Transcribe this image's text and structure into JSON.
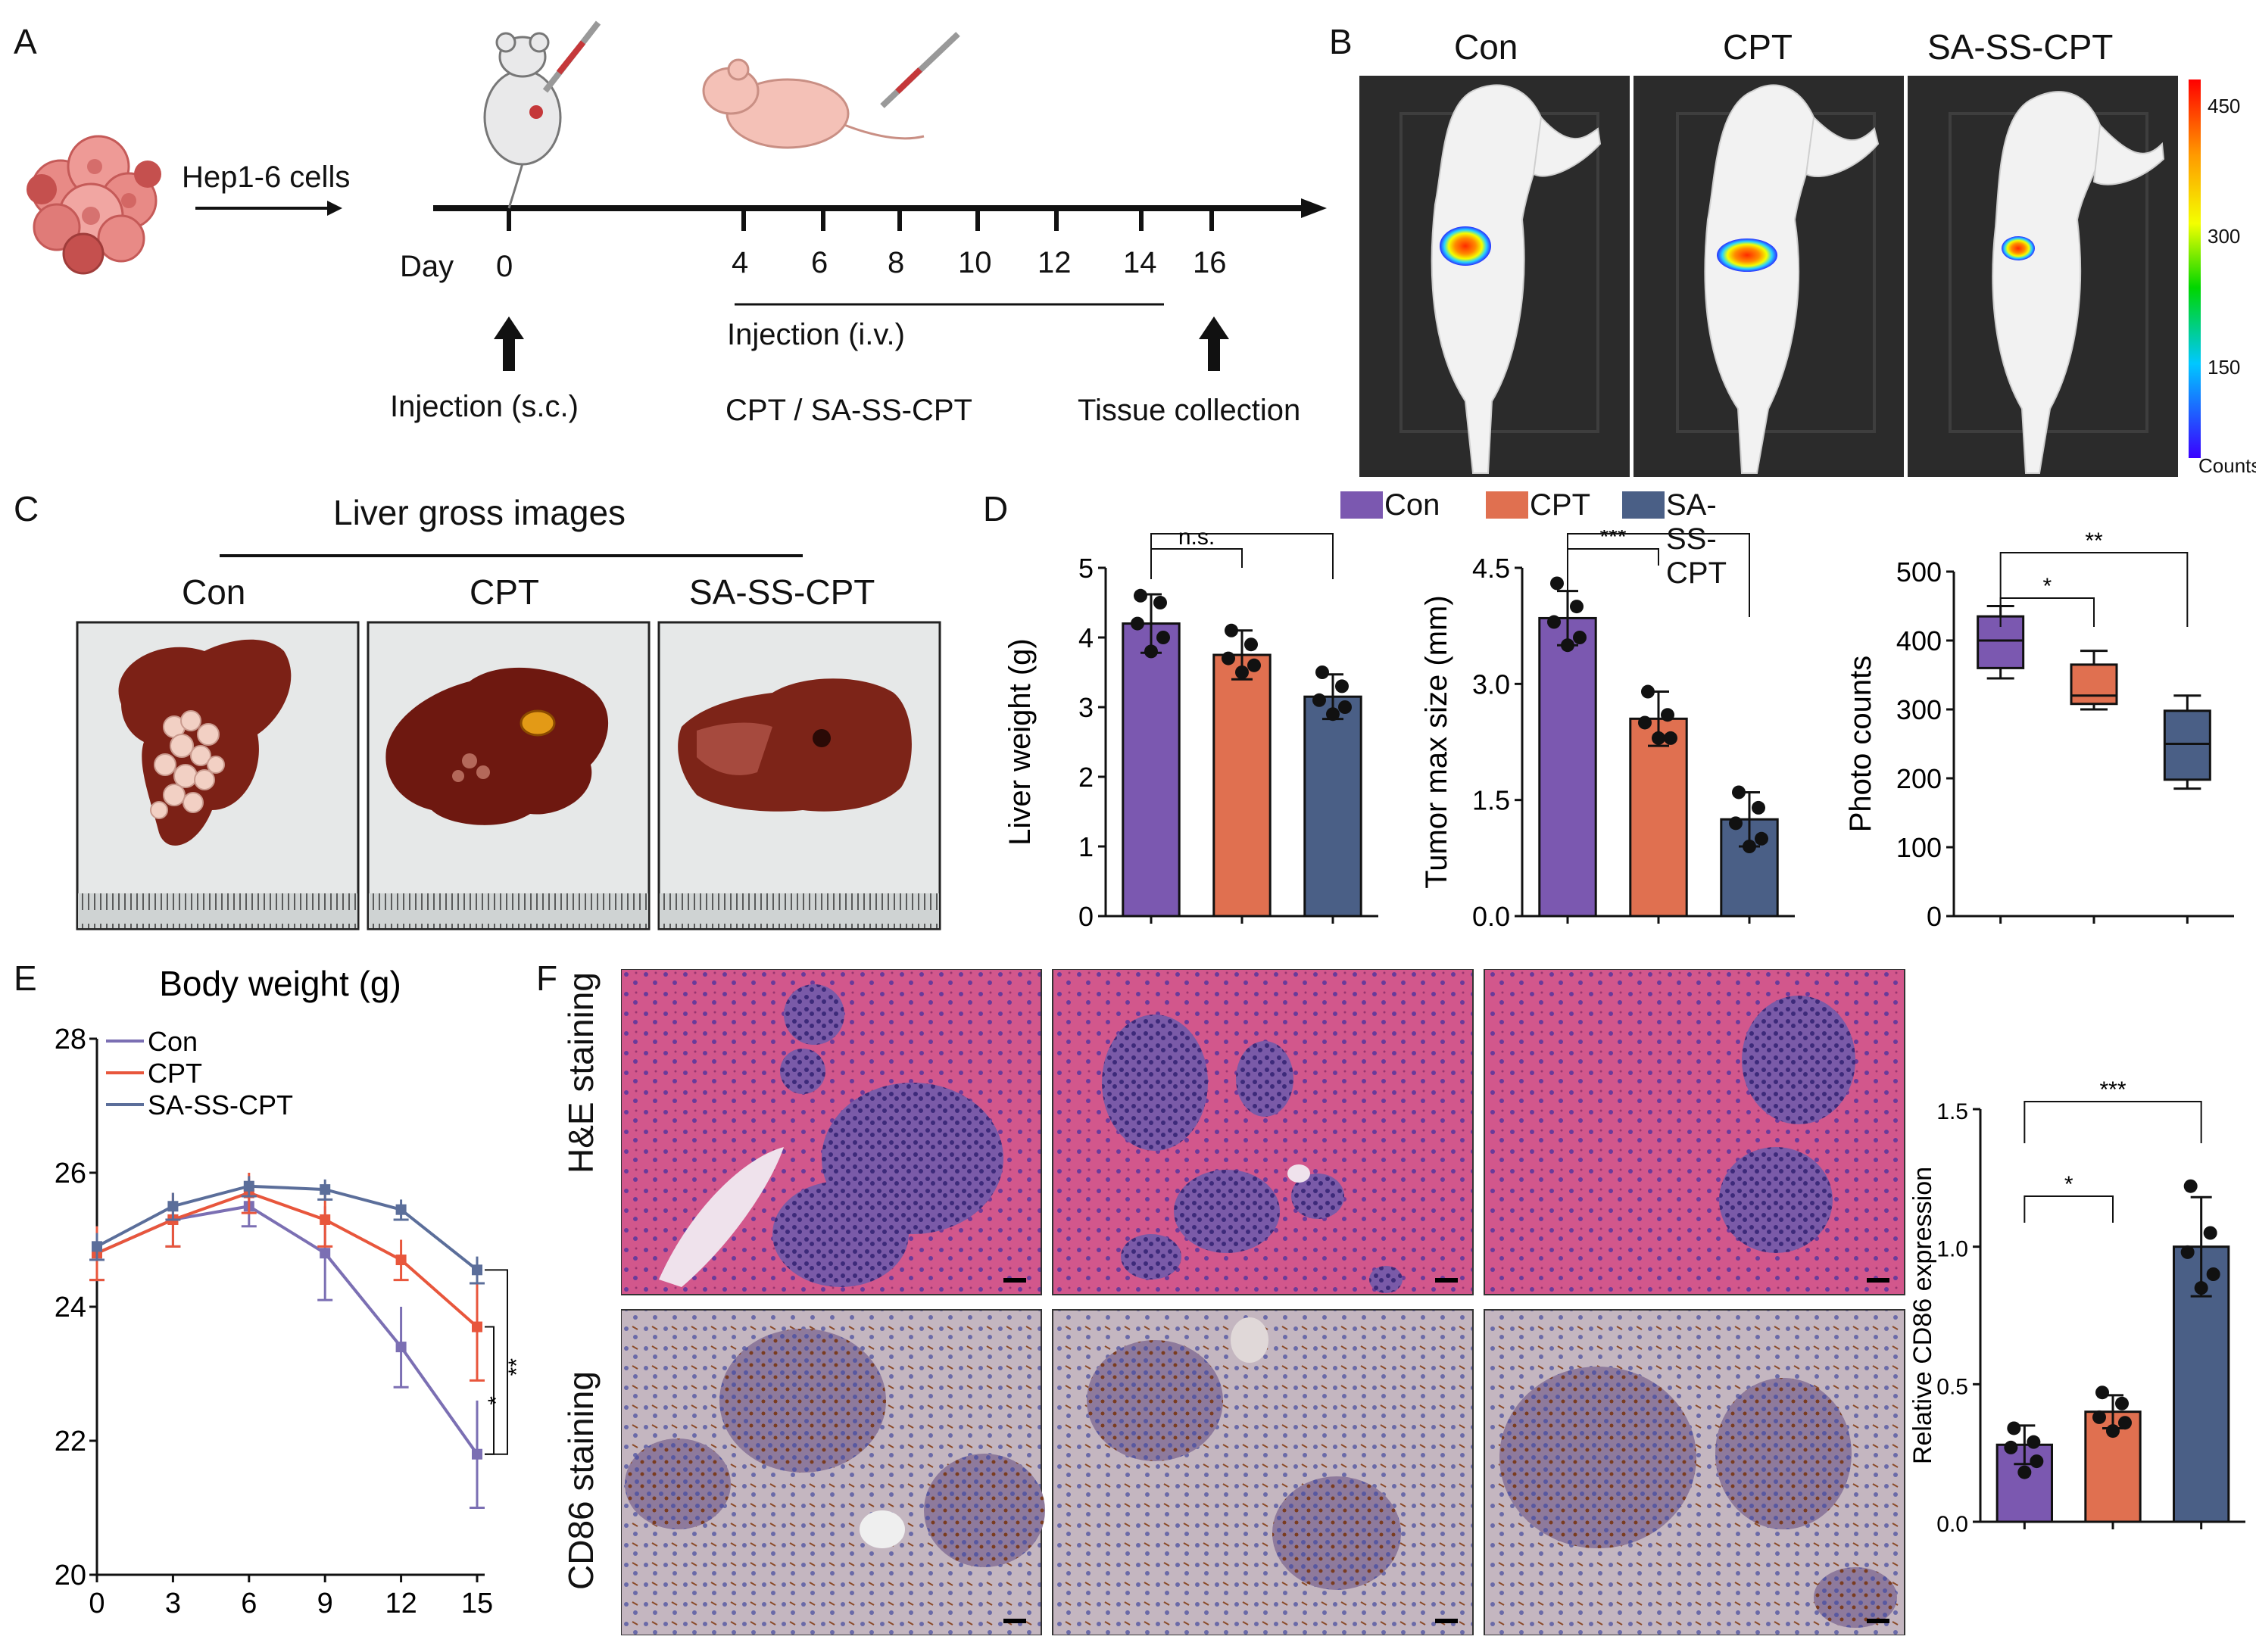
{
  "panels": {
    "A": "A",
    "B": "B",
    "C": "C",
    "D": "D",
    "E": "E",
    "F": "F"
  },
  "panelA": {
    "cells_label": "Hep1-6 cells",
    "day_label": "Day",
    "days": [
      "0",
      "4",
      "6",
      "8",
      "10",
      "12",
      "14",
      "16"
    ],
    "injection_sc": "Injection (s.c.)",
    "injection_iv": "Injection (i.v.)",
    "treatments": "CPT / SA-SS-CPT",
    "tissue": "Tissue collection"
  },
  "panelB": {
    "groups": [
      "Con",
      "CPT",
      "SA-SS-CPT"
    ],
    "scale_ticks": [
      "450",
      "300",
      "150"
    ],
    "scale_unit": "Counts"
  },
  "panelC": {
    "title": "Liver gross images",
    "groups": [
      "Con",
      "CPT",
      "SA-SS-CPT"
    ]
  },
  "legend": {
    "items": [
      {
        "name": "Con",
        "color": "#7b58b0"
      },
      {
        "name": "CPT",
        "color": "#e07050"
      },
      {
        "name": "SA-SS-CPT",
        "color": "#4a5f86"
      }
    ]
  },
  "panelE": {
    "title": "Body weight (g)"
  },
  "panelF": {
    "row_labels": [
      "H&E staining",
      "CD86 staining"
    ]
  },
  "chart_data": [
    {
      "id": "liver-weight",
      "type": "bar",
      "ylabel": "Liver weight (g)",
      "ylim": [
        0,
        5
      ],
      "yticks": [
        "0",
        "1",
        "2",
        "3",
        "4",
        "5"
      ],
      "categories": [
        "Con",
        "CPT",
        "SA-SS-CPT"
      ],
      "values": [
        4.2,
        3.75,
        3.15
      ],
      "errors": [
        0.42,
        0.35,
        0.32
      ],
      "points": [
        [
          4.6,
          4.5,
          4.2,
          4.0,
          3.8
        ],
        [
          4.1,
          3.9,
          3.7,
          3.6,
          3.5
        ],
        [
          3.5,
          3.3,
          3.1,
          3.0,
          2.9
        ]
      ],
      "significance": [
        {
          "pair": [
            0,
            1
          ],
          "label": "n.s."
        },
        {
          "pair": [
            0,
            2
          ],
          "label": "**"
        }
      ]
    },
    {
      "id": "tumor-size",
      "type": "bar",
      "ylabel": "Tumor max size (mm)",
      "ylim": [
        0,
        4.5
      ],
      "yticks": [
        "0.0",
        "1.5",
        "3.0",
        "4.5"
      ],
      "categories": [
        "Con",
        "CPT",
        "SA-SS-CPT"
      ],
      "values": [
        3.85,
        2.55,
        1.25
      ],
      "errors": [
        0.35,
        0.35,
        0.35
      ],
      "points": [
        [
          4.3,
          4.0,
          3.8,
          3.6,
          3.5
        ],
        [
          2.9,
          2.6,
          2.5,
          2.3,
          2.3
        ],
        [
          1.6,
          1.4,
          1.2,
          1.0,
          0.9
        ]
      ],
      "significance": [
        {
          "pair": [
            0,
            1
          ],
          "label": "***"
        },
        {
          "pair": [
            0,
            2
          ],
          "label": "***"
        }
      ]
    },
    {
      "id": "photo-counts",
      "type": "box",
      "ylabel": "Photo counts",
      "ylim": [
        0,
        500
      ],
      "yticks": [
        "0",
        "100",
        "200",
        "300",
        "400",
        "500"
      ],
      "categories": [
        "Con",
        "CPT",
        "SA-SS-CPT"
      ],
      "boxes": [
        {
          "min": 345,
          "q1": 360,
          "median": 400,
          "q3": 435,
          "max": 450
        },
        {
          "min": 300,
          "q1": 308,
          "median": 320,
          "q3": 365,
          "max": 385
        },
        {
          "min": 185,
          "q1": 198,
          "median": 250,
          "q3": 298,
          "max": 320
        }
      ],
      "significance": [
        {
          "pair": [
            0,
            1
          ],
          "label": "*"
        },
        {
          "pair": [
            0,
            2
          ],
          "label": "**"
        }
      ]
    },
    {
      "id": "body-weight",
      "type": "line",
      "ylim": [
        20,
        28
      ],
      "yticks": [
        "20",
        "22",
        "24",
        "26",
        "28"
      ],
      "x": [
        0,
        3,
        6,
        9,
        12,
        15
      ],
      "xticks": [
        "0",
        "3",
        "6",
        "9",
        "12",
        "15"
      ],
      "series": [
        {
          "name": "Con",
          "color": "#7b6fb3",
          "values": [
            24.8,
            25.3,
            25.5,
            24.8,
            23.4,
            21.8
          ],
          "errors": [
            0.4,
            0.4,
            0.3,
            0.7,
            0.6,
            0.8
          ]
        },
        {
          "name": "CPT",
          "color": "#e8563c",
          "values": [
            24.8,
            25.3,
            25.7,
            25.3,
            24.7,
            23.7
          ],
          "errors": [
            0.4,
            0.4,
            0.3,
            0.4,
            0.3,
            0.8
          ]
        },
        {
          "name": "SA-SS-CPT",
          "color": "#5b6e9a",
          "values": [
            24.9,
            25.5,
            25.8,
            25.75,
            25.45,
            24.55
          ],
          "errors": [
            0.2,
            0.2,
            0.15,
            0.15,
            0.15,
            0.2
          ]
        }
      ],
      "significance": [
        {
          "label": "*"
        },
        {
          "label": "**"
        }
      ]
    },
    {
      "id": "cd86-expression",
      "type": "bar",
      "ylabel": "Relative CD86 expression",
      "ylim": [
        0,
        1.5
      ],
      "yticks": [
        "0.0",
        "0.5",
        "1.0",
        "1.5"
      ],
      "categories": [
        "Con",
        "CPT",
        "SA-SS-CPT"
      ],
      "values": [
        0.28,
        0.4,
        1.0
      ],
      "errors": [
        0.07,
        0.06,
        0.18
      ],
      "points": [
        [
          0.34,
          0.29,
          0.27,
          0.22,
          0.18
        ],
        [
          0.47,
          0.43,
          0.38,
          0.36,
          0.33
        ],
        [
          1.22,
          1.05,
          0.98,
          0.9,
          0.85
        ]
      ],
      "significance": [
        {
          "pair": [
            0,
            1
          ],
          "label": "*"
        },
        {
          "pair": [
            0,
            2
          ],
          "label": "***"
        }
      ]
    }
  ]
}
